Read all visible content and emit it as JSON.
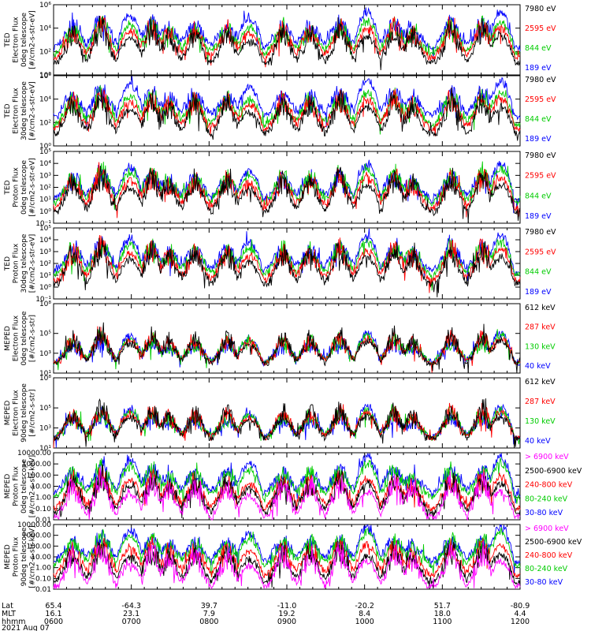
{
  "chart_data": [
    {
      "type": "line",
      "ylabel": [
        "TED",
        "Electron Flux",
        "0deg telescope",
        "[#/cm2-s-str-eV]"
      ],
      "yscale": "log",
      "ylim": [
        1,
        1000000
      ],
      "yticks": [
        {
          "v": 1,
          "t": "10⁰"
        },
        {
          "v": 100,
          "t": "10²"
        },
        {
          "v": 10000,
          "t": "10⁴"
        },
        {
          "v": 1000000,
          "t": "10⁶"
        }
      ],
      "legend": [
        "7980 eV",
        "2595 eV",
        "844 eV",
        "189 eV"
      ],
      "series_colors": [
        "#000000",
        "#ff0000",
        "#00cc00",
        "#0000ff"
      ],
      "typical": [
        12,
        30,
        60,
        200
      ]
    },
    {
      "type": "line",
      "ylabel": [
        "TED",
        "Electron Flux",
        "30deg telescope",
        "[#/cm2-s-str-eV]"
      ],
      "yscale": "log",
      "ylim": [
        1,
        1000000
      ],
      "yticks": [
        {
          "v": 1,
          "t": "10⁰"
        },
        {
          "v": 100,
          "t": "10²"
        },
        {
          "v": 10000,
          "t": "10⁴"
        },
        {
          "v": 1000000,
          "t": "10⁶"
        }
      ],
      "legend": [
        "7980 eV",
        "2595 eV",
        "844 eV",
        "189 eV"
      ],
      "series_colors": [
        "#000000",
        "#ff0000",
        "#00cc00",
        "#0000ff"
      ],
      "typical": [
        12,
        30,
        60,
        300
      ]
    },
    {
      "type": "line",
      "ylabel": [
        "TED",
        "Proton Flux",
        "0deg telescope",
        "[#/cm2-s-str-eV]"
      ],
      "yscale": "log",
      "ylim": [
        0.1,
        100000
      ],
      "yticks": [
        {
          "v": 0.1,
          "t": "10⁻¹"
        },
        {
          "v": 1,
          "t": "10⁰"
        },
        {
          "v": 10,
          "t": "10¹"
        },
        {
          "v": 100,
          "t": "10²"
        },
        {
          "v": 1000,
          "t": "10³"
        },
        {
          "v": 10000,
          "t": "10⁴"
        },
        {
          "v": 100000,
          "t": "10⁵"
        }
      ],
      "legend": [
        "7980 eV",
        "2595 eV",
        "844 eV",
        "189 eV"
      ],
      "series_colors": [
        "#000000",
        "#ff0000",
        "#00cc00",
        "#0000ff"
      ],
      "typical": [
        1,
        2,
        5,
        8
      ]
    },
    {
      "type": "line",
      "ylabel": [
        "TED",
        "Proton Flux",
        "30deg telescope",
        "[#/cm2-s-str-eV]"
      ],
      "yscale": "log",
      "ylim": [
        0.1,
        100000
      ],
      "yticks": [
        {
          "v": 0.1,
          "t": "10⁻¹"
        },
        {
          "v": 1,
          "t": "10⁰"
        },
        {
          "v": 10,
          "t": "10¹"
        },
        {
          "v": 100,
          "t": "10²"
        },
        {
          "v": 1000,
          "t": "10³"
        },
        {
          "v": 10000,
          "t": "10⁴"
        },
        {
          "v": 100000,
          "t": "10⁵"
        }
      ],
      "legend": [
        "7980 eV",
        "2595 eV",
        "844 eV",
        "189 eV"
      ],
      "series_colors": [
        "#000000",
        "#ff0000",
        "#00cc00",
        "#0000ff"
      ],
      "typical": [
        2,
        4,
        10,
        20
      ]
    },
    {
      "type": "line",
      "ylabel": [
        "MEPED",
        "Electron Flux",
        "0deg telescope",
        "[#/cm2-s-str]"
      ],
      "yscale": "log",
      "ylim": [
        10,
        100000000
      ],
      "yticks": [
        {
          "v": 10,
          "t": "10¹"
        },
        {
          "v": 1000,
          "t": "10³"
        },
        {
          "v": 100000,
          "t": "10⁵"
        },
        {
          "v": 100000000,
          "t": "10⁸"
        }
      ],
      "legend": [
        "612 keV",
        "287 keV",
        "130 keV",
        "40 keV"
      ],
      "series_colors": [
        "#000000",
        "#ff0000",
        "#00cc00",
        "#0000ff"
      ],
      "typical": [
        100,
        100,
        100,
        100
      ]
    },
    {
      "type": "line",
      "ylabel": [
        "MEPED",
        "Electron Flux",
        "90deg telescope",
        "[#/cm2-s-str]"
      ],
      "yscale": "log",
      "ylim": [
        10,
        100000000
      ],
      "yticks": [
        {
          "v": 10,
          "t": "10¹"
        },
        {
          "v": 1000,
          "t": "10³"
        },
        {
          "v": 100000,
          "t": "10⁵"
        },
        {
          "v": 100000000,
          "t": "10⁸"
        }
      ],
      "legend": [
        "612 keV",
        "287 keV",
        "130 keV",
        "40 keV"
      ],
      "series_colors": [
        "#000000",
        "#ff0000",
        "#00cc00",
        "#0000ff"
      ],
      "typical": [
        100,
        100,
        100,
        100
      ]
    },
    {
      "type": "line",
      "ylabel": [
        "MEPED",
        "Proton Flux",
        "0deg telescope",
        "[#/cm2-s-str-keV]"
      ],
      "yscale": "log",
      "ylim": [
        0.01,
        10000
      ],
      "yticks": [
        {
          "v": 0.01,
          "t": "0.01"
        },
        {
          "v": 0.1,
          "t": "0.10"
        },
        {
          "v": 1,
          "t": "1.00"
        },
        {
          "v": 10,
          "t": "10.00"
        },
        {
          "v": 100,
          "t": "100.00"
        },
        {
          "v": 1000,
          "t": "1000.00"
        },
        {
          "v": 10000,
          "t": "10000.00"
        }
      ],
      "legend": [
        "> 6900 keV",
        "2500-6900 keV",
        "240-800 keV",
        "80-240 keV",
        "30-80 keV"
      ],
      "series_colors": [
        "#ff00ff",
        "#000000",
        "#ff0000",
        "#00cc00",
        "#0000ff"
      ],
      "typical": [
        0.02,
        0.05,
        0.1,
        1,
        2
      ]
    },
    {
      "type": "line",
      "ylabel": [
        "MEPED",
        "Proton Flux",
        "90deg telescope",
        "[#/cm2-s-str-keV]"
      ],
      "yscale": "log",
      "ylim": [
        0.01,
        10000
      ],
      "yticks": [
        {
          "v": 0.01,
          "t": "0.01"
        },
        {
          "v": 0.1,
          "t": "0.10"
        },
        {
          "v": 1,
          "t": "1.00"
        },
        {
          "v": 10,
          "t": "10.00"
        },
        {
          "v": 100,
          "t": "100.00"
        },
        {
          "v": 1000,
          "t": "1000.00"
        },
        {
          "v": 10000,
          "t": "10000.00"
        }
      ],
      "legend": [
        "> 6900 keV",
        "2500-6900 keV",
        "240-800 keV",
        "80-240 keV",
        "30-80 keV"
      ],
      "series_colors": [
        "#ff00ff",
        "#000000",
        "#ff0000",
        "#00cc00",
        "#0000ff"
      ],
      "typical": [
        0.02,
        0.05,
        0.2,
        1.5,
        3
      ]
    }
  ],
  "xaxis": {
    "row_labels": [
      "Lat",
      "MLT",
      "hhmm"
    ],
    "lat": [
      "65.4",
      "-64.3",
      "39.7",
      "-11.0",
      "-20.2",
      "51.7",
      "-80.9"
    ],
    "mlt": [
      "16.1",
      "23.1",
      "7.9",
      "19.2",
      "8.4",
      "18.0",
      "4.4"
    ],
    "hhmm": [
      "0600",
      "0700",
      "0800",
      "0900",
      "1000",
      "1100",
      "1200"
    ],
    "date": "2021 Aug 07",
    "range": [
      "0600",
      "1200"
    ]
  },
  "passes": [
    {
      "center_hhmm": "0615",
      "type": "aurora",
      "strength": 0.8
    },
    {
      "center_hhmm": "0637",
      "type": "aurora",
      "strength": 1.0
    },
    {
      "center_hhmm": "0659",
      "type": "belt",
      "strength": 1.0
    },
    {
      "center_hhmm": "0716",
      "type": "aurora",
      "strength": 0.9
    },
    {
      "center_hhmm": "0729",
      "type": "aurora",
      "strength": 0.7
    },
    {
      "center_hhmm": "0749",
      "type": "aurora",
      "strength": 0.8
    },
    {
      "center_hhmm": "0814",
      "type": "aurora",
      "strength": 0.8
    },
    {
      "center_hhmm": "0831",
      "type": "belt",
      "strength": 0.9
    },
    {
      "center_hhmm": "0857",
      "type": "aurora",
      "strength": 0.8
    },
    {
      "center_hhmm": "0918",
      "type": "aurora",
      "strength": 0.8
    },
    {
      "center_hhmm": "0941",
      "type": "aurora",
      "strength": 0.9
    },
    {
      "center_hhmm": "1002",
      "type": "belt",
      "strength": 1.1
    },
    {
      "center_hhmm": "1023",
      "type": "aurora",
      "strength": 0.9
    },
    {
      "center_hhmm": "1037",
      "type": "aurora",
      "strength": 0.7
    },
    {
      "center_hhmm": "1107",
      "type": "aurora",
      "strength": 0.9
    },
    {
      "center_hhmm": "1131",
      "type": "aurora",
      "strength": 0.9
    },
    {
      "center_hhmm": "1145",
      "type": "belt",
      "strength": 1.1
    }
  ]
}
